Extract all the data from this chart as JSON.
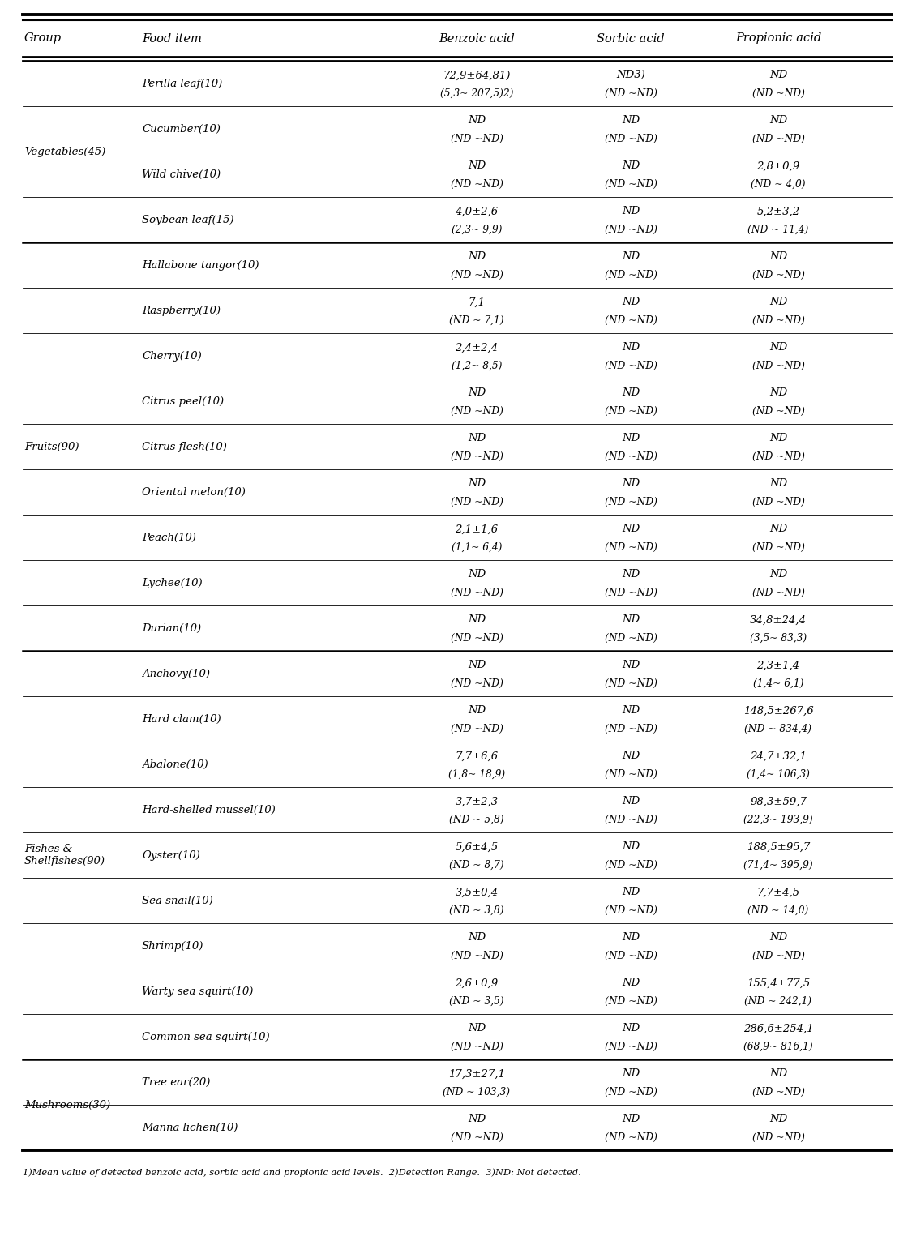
{
  "columns": [
    "Group",
    "Food item",
    "Benzoic acid",
    "Sorbic acid",
    "Propionic acid"
  ],
  "footnote": "1)Mean value of detected benzoic acid, sorbic acid and propionic acid levels.  2)Detection Range.  3)ND: Not detected.",
  "rows": [
    {
      "group": "Vegetables(45)",
      "food": "Perilla leaf(10)",
      "benzoic_line1": "72,9±64,81)",
      "benzoic_line2": "(5,3~ 207,5)2)",
      "sorbic_line1": "ND3)",
      "sorbic_line2": "(ND ~ND)",
      "propionic_line1": "ND",
      "propionic_line2": "(ND ~ND)"
    },
    {
      "group": "",
      "food": "Cucumber(10)",
      "benzoic_line1": "ND",
      "benzoic_line2": "(ND ~ND)",
      "sorbic_line1": "ND",
      "sorbic_line2": "(ND ~ND)",
      "propionic_line1": "ND",
      "propionic_line2": "(ND ~ND)"
    },
    {
      "group": "",
      "food": "Wild chive(10)",
      "benzoic_line1": "ND",
      "benzoic_line2": "(ND ~ND)",
      "sorbic_line1": "ND",
      "sorbic_line2": "(ND ~ND)",
      "propionic_line1": "2,8±0,9",
      "propionic_line2": "(ND ~ 4,0)"
    },
    {
      "group": "",
      "food": "Soybean leaf(15)",
      "benzoic_line1": "4,0±2,6",
      "benzoic_line2": "(2,3~ 9,9)",
      "sorbic_line1": "ND",
      "sorbic_line2": "(ND ~ND)",
      "propionic_line1": "5,2±3,2",
      "propionic_line2": "(ND ~ 11,4)"
    },
    {
      "group": "Fruits(90)",
      "food": "Hallabone tangor(10)",
      "benzoic_line1": "ND",
      "benzoic_line2": "(ND ~ND)",
      "sorbic_line1": "ND",
      "sorbic_line2": "(ND ~ND)",
      "propionic_line1": "ND",
      "propionic_line2": "(ND ~ND)"
    },
    {
      "group": "",
      "food": "Raspberry(10)",
      "benzoic_line1": "7,1",
      "benzoic_line2": "(ND ~ 7,1)",
      "sorbic_line1": "ND",
      "sorbic_line2": "(ND ~ND)",
      "propionic_line1": "ND",
      "propionic_line2": "(ND ~ND)"
    },
    {
      "group": "",
      "food": "Cherry(10)",
      "benzoic_line1": "2,4±2,4",
      "benzoic_line2": "(1,2~ 8,5)",
      "sorbic_line1": "ND",
      "sorbic_line2": "(ND ~ND)",
      "propionic_line1": "ND",
      "propionic_line2": "(ND ~ND)"
    },
    {
      "group": "",
      "food": "Citrus peel(10)",
      "benzoic_line1": "ND",
      "benzoic_line2": "(ND ~ND)",
      "sorbic_line1": "ND",
      "sorbic_line2": "(ND ~ND)",
      "propionic_line1": "ND",
      "propionic_line2": "(ND ~ND)"
    },
    {
      "group": "",
      "food": "Citrus flesh(10)",
      "benzoic_line1": "ND",
      "benzoic_line2": "(ND ~ND)",
      "sorbic_line1": "ND",
      "sorbic_line2": "(ND ~ND)",
      "propionic_line1": "ND",
      "propionic_line2": "(ND ~ND)"
    },
    {
      "group": "",
      "food": "Oriental melon(10)",
      "benzoic_line1": "ND",
      "benzoic_line2": "(ND ~ND)",
      "sorbic_line1": "ND",
      "sorbic_line2": "(ND ~ND)",
      "propionic_line1": "ND",
      "propionic_line2": "(ND ~ND)"
    },
    {
      "group": "",
      "food": "Peach(10)",
      "benzoic_line1": "2,1±1,6",
      "benzoic_line2": "(1,1~ 6,4)",
      "sorbic_line1": "ND",
      "sorbic_line2": "(ND ~ND)",
      "propionic_line1": "ND",
      "propionic_line2": "(ND ~ND)"
    },
    {
      "group": "",
      "food": "Lychee(10)",
      "benzoic_line1": "ND",
      "benzoic_line2": "(ND ~ND)",
      "sorbic_line1": "ND",
      "sorbic_line2": "(ND ~ND)",
      "propionic_line1": "ND",
      "propionic_line2": "(ND ~ND)"
    },
    {
      "group": "",
      "food": "Durian(10)",
      "benzoic_line1": "ND",
      "benzoic_line2": "(ND ~ND)",
      "sorbic_line1": "ND",
      "sorbic_line2": "(ND ~ND)",
      "propionic_line1": "34,8±24,4",
      "propionic_line2": "(3,5~ 83,3)"
    },
    {
      "group": "Fishes &\nShellfishes(90)",
      "food": "Anchovy(10)",
      "benzoic_line1": "ND",
      "benzoic_line2": "(ND ~ND)",
      "sorbic_line1": "ND",
      "sorbic_line2": "(ND ~ND)",
      "propionic_line1": "2,3±1,4",
      "propionic_line2": "(1,4~ 6,1)"
    },
    {
      "group": "",
      "food": "Hard clam(10)",
      "benzoic_line1": "ND",
      "benzoic_line2": "(ND ~ND)",
      "sorbic_line1": "ND",
      "sorbic_line2": "(ND ~ND)",
      "propionic_line1": "148,5±267,6",
      "propionic_line2": "(ND ~ 834,4)"
    },
    {
      "group": "",
      "food": "Abalone(10)",
      "benzoic_line1": "7,7±6,6",
      "benzoic_line2": "(1,8~ 18,9)",
      "sorbic_line1": "ND",
      "sorbic_line2": "(ND ~ND)",
      "propionic_line1": "24,7±32,1",
      "propionic_line2": "(1,4~ 106,3)"
    },
    {
      "group": "",
      "food": "Hard-shelled mussel(10)",
      "benzoic_line1": "3,7±2,3",
      "benzoic_line2": "(ND ~ 5,8)",
      "sorbic_line1": "ND",
      "sorbic_line2": "(ND ~ND)",
      "propionic_line1": "98,3±59,7",
      "propionic_line2": "(22,3~ 193,9)"
    },
    {
      "group": "",
      "food": "Oyster(10)",
      "benzoic_line1": "5,6±4,5",
      "benzoic_line2": "(ND ~ 8,7)",
      "sorbic_line1": "ND",
      "sorbic_line2": "(ND ~ND)",
      "propionic_line1": "188,5±95,7",
      "propionic_line2": "(71,4~ 395,9)"
    },
    {
      "group": "",
      "food": "Sea snail(10)",
      "benzoic_line1": "3,5±0,4",
      "benzoic_line2": "(ND ~ 3,8)",
      "sorbic_line1": "ND",
      "sorbic_line2": "(ND ~ND)",
      "propionic_line1": "7,7±4,5",
      "propionic_line2": "(ND ~ 14,0)"
    },
    {
      "group": "",
      "food": "Shrimp(10)",
      "benzoic_line1": "ND",
      "benzoic_line2": "(ND ~ND)",
      "sorbic_line1": "ND",
      "sorbic_line2": "(ND ~ND)",
      "propionic_line1": "ND",
      "propionic_line2": "(ND ~ND)"
    },
    {
      "group": "",
      "food": "Warty sea squirt(10)",
      "benzoic_line1": "2,6±0,9",
      "benzoic_line2": "(ND ~ 3,5)",
      "sorbic_line1": "ND",
      "sorbic_line2": "(ND ~ND)",
      "propionic_line1": "155,4±77,5",
      "propionic_line2": "(ND ~ 242,1)"
    },
    {
      "group": "",
      "food": "Common sea squirt(10)",
      "benzoic_line1": "ND",
      "benzoic_line2": "(ND ~ND)",
      "sorbic_line1": "ND",
      "sorbic_line2": "(ND ~ND)",
      "propionic_line1": "286,6±254,1",
      "propionic_line2": "(68,9~ 816,1)"
    },
    {
      "group": "Mushrooms(30)",
      "food": "Tree ear(20)",
      "benzoic_line1": "17,3±27,1",
      "benzoic_line2": "(ND ~ 103,3)",
      "sorbic_line1": "ND",
      "sorbic_line2": "(ND ~ND)",
      "propionic_line1": "ND",
      "propionic_line2": "(ND ~ND)"
    },
    {
      "group": "",
      "food": "Manna lichen(10)",
      "benzoic_line1": "ND",
      "benzoic_line2": "(ND ~ND)",
      "sorbic_line1": "ND",
      "sorbic_line2": "(ND ~ND)",
      "propionic_line1": "ND",
      "propionic_line2": "(ND ~ND)"
    }
  ],
  "group_starts": [
    0,
    4,
    13,
    22
  ],
  "group_names": [
    "Vegetables(45)",
    "Fruits(90)",
    "Fishes &\nShellfishes(90)",
    "Mushrooms(30)"
  ],
  "group_spans": [
    4,
    9,
    9,
    2
  ],
  "bg_color": "#ffffff",
  "font_size": 9.5,
  "header_font_size": 10.5,
  "small_font_size": 8.8
}
